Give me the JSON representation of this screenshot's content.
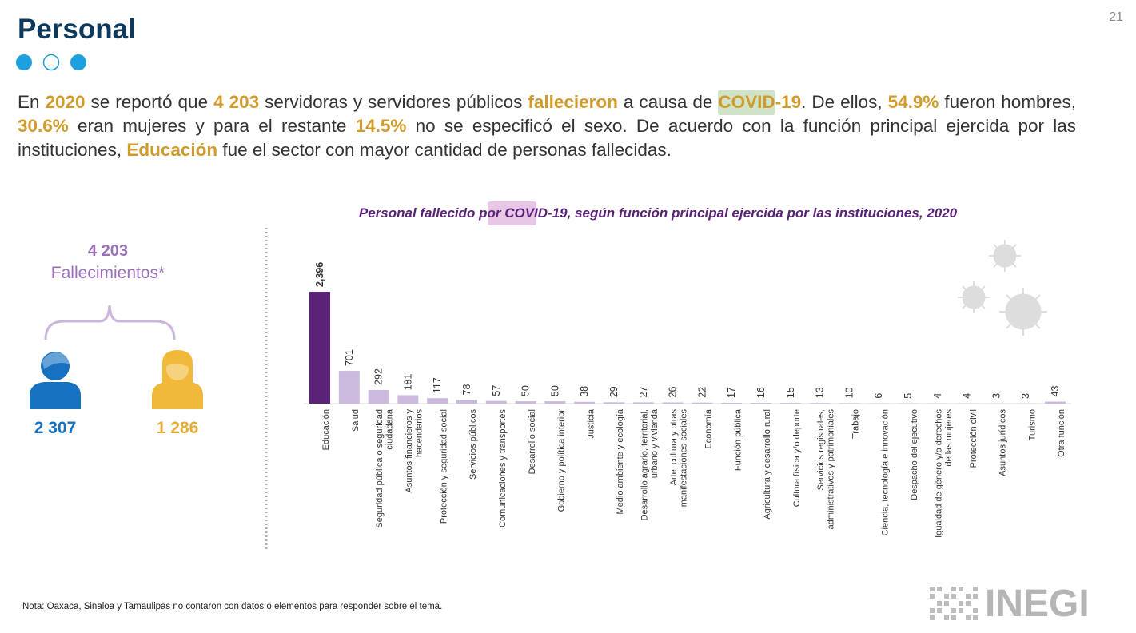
{
  "page_number": "21",
  "header": {
    "title": "Personal"
  },
  "paragraph": [
    {
      "text": "En "
    },
    {
      "text": "2020",
      "color": "#d19b2a"
    },
    {
      "text": " se reportó que "
    },
    {
      "text": "4 203",
      "color": "#d19b2a"
    },
    {
      "text": " servidoras y servidores públicos "
    },
    {
      "text": "fallecieron",
      "color": "#d19b2a"
    },
    {
      "text": " a causa de "
    },
    {
      "text": "COVID",
      "color": "#d19b2a",
      "background": "#cfe3c9"
    },
    {
      "text": "-19",
      "color": "#d19b2a"
    },
    {
      "text": ". De ellos, "
    },
    {
      "text": "54.9%",
      "color": "#d19b2a"
    },
    {
      "text": " fueron hombres, "
    },
    {
      "text": "30.6%",
      "color": "#d19b2a"
    },
    {
      "text": " eran mujeres y para el restante "
    },
    {
      "text": "14.5%",
      "color": "#d19b2a"
    },
    {
      "text": " no se especificó el sexo. De acuerdo con la función principal ejercida por las instituciones, "
    },
    {
      "text": "Educación",
      "color": "#d19b2a"
    },
    {
      "text": " fue el sector con mayor cantidad de personas fallecidas."
    }
  ],
  "summary": {
    "total": "4 203",
    "label": "Fallecimientos*",
    "men": "2 307",
    "women": "1 286"
  },
  "chart_data": {
    "type": "bar",
    "title": "Personal fallecido por COVID-19, según función principal ejercida por las instituciones, 2020",
    "categories": [
      "Educación",
      "Salud",
      "Seguridad pública o seguridad\nciudadana",
      "Asuntos financieros y\nhacendarios",
      "Protección y seguridad social",
      "Servicios públicos",
      "Comunicaciones y transportes",
      "Desarrollo social",
      "Gobierno y política interior",
      "Justicia",
      "Medio ambiente y ecología",
      "Desarrollo agrario, territorial,\nurbano y vivienda",
      "Arte, cultura y otras\nmanifestaciones sociales",
      "Economía",
      "Función pública",
      "Agricultura y desarrollo rural",
      "Cultura física y/o deporte",
      "Servicios registrales,\nadministrativos y patrimoniales",
      "Trabajo",
      "Ciencia, tecnología e innovación",
      "Despacho del ejecutivo",
      "Igualdad de género y/o derechos\nde las mujeres",
      "Protección civil",
      "Asuntos jurídicos",
      "Turismo",
      "Otra función"
    ],
    "values": [
      2396,
      701,
      292,
      181,
      117,
      78,
      57,
      50,
      50,
      38,
      29,
      27,
      26,
      22,
      17,
      16,
      15,
      13,
      10,
      6,
      5,
      4,
      4,
      3,
      3,
      43
    ],
    "value_labels": [
      "2,396",
      "701",
      "292",
      "181",
      "117",
      "78",
      "57",
      "50",
      "50",
      "38",
      "29",
      "27",
      "26",
      "22",
      "17",
      "16",
      "15",
      "13",
      "10",
      "6",
      "5",
      "4",
      "4",
      "3",
      "3",
      "43"
    ],
    "colors": [
      "#5b2378",
      "#cbbadd",
      "#cbbadd",
      "#cbbadd",
      "#cbbadd",
      "#cbbadd",
      "#cbbadd",
      "#cbbadd",
      "#cbbadd",
      "#cbbadd",
      "#cbbadd",
      "#cbbadd",
      "#cbbadd",
      "#cbbadd",
      "#cbbadd",
      "#cbbadd",
      "#cbbadd",
      "#cbbadd",
      "#cbbadd",
      "#cbbadd",
      "#cbbadd",
      "#cbbadd",
      "#cbbadd",
      "#cbbadd",
      "#cbbadd",
      "#cbbadd"
    ],
    "ylim": [
      0,
      2400
    ]
  },
  "note": "Nota: Oaxaca, Sinaloa y Tamaulipas no contaron con datos o elementos para responder sobre el tema.",
  "logo": "INEGI"
}
